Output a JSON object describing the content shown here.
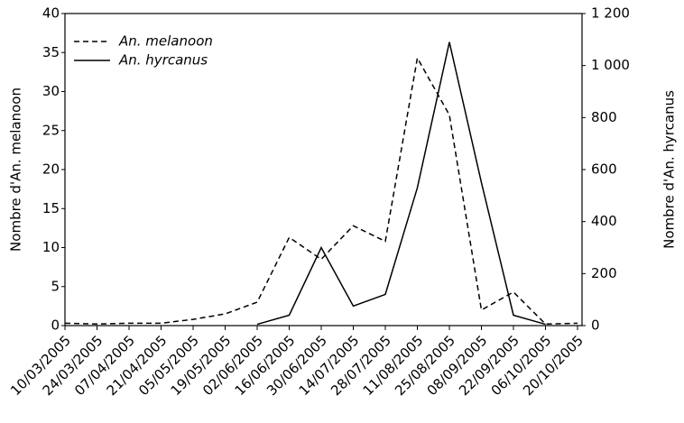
{
  "chart_data": {
    "type": "line",
    "categories": [
      "10/03/2005",
      "24/03/2005",
      "07/04/2005",
      "21/04/2005",
      "05/05/2005",
      "19/05/2005",
      "02/06/2005",
      "16/06/2005",
      "30/06/2005",
      "14/07/2005",
      "28/07/2005",
      "11/08/2005",
      "25/08/2005",
      "08/09/2005",
      "22/09/2005",
      "06/10/2005",
      "20/10/2005"
    ],
    "y_label": "Nombre d'An. melanoon",
    "y2_label": "Nombre d'An. hyrcanus",
    "series": [
      {
        "name": "An. melanoon",
        "color": "#000000",
        "dash": "dashed",
        "values": [
          0.3,
          0.2,
          0.3,
          0.3,
          0.8,
          1.5,
          3,
          11.3,
          8.5,
          12.8,
          10.8,
          34.3,
          27,
          2,
          4.3,
          0.2,
          0.3
        ]
      },
      {
        "name": "An. hyrcanus",
        "color": "#000000",
        "dash": "solid",
        "axis": "y2",
        "values": [
          null,
          null,
          null,
          null,
          null,
          null,
          5,
          40,
          300,
          75,
          120,
          530,
          1090,
          550,
          40,
          5,
          null
        ]
      }
    ],
    "ylim": [
      0,
      40
    ],
    "yticks": [
      0,
      5,
      10,
      15,
      20,
      25,
      30,
      35,
      40
    ],
    "y2lim": [
      0,
      1200
    ],
    "y2ticks": [
      0,
      200,
      400,
      600,
      800,
      {
        "value": 1000,
        "label": "1 000"
      },
      {
        "value": 1200,
        "label": "1 200"
      }
    ],
    "legend": "upper left"
  }
}
